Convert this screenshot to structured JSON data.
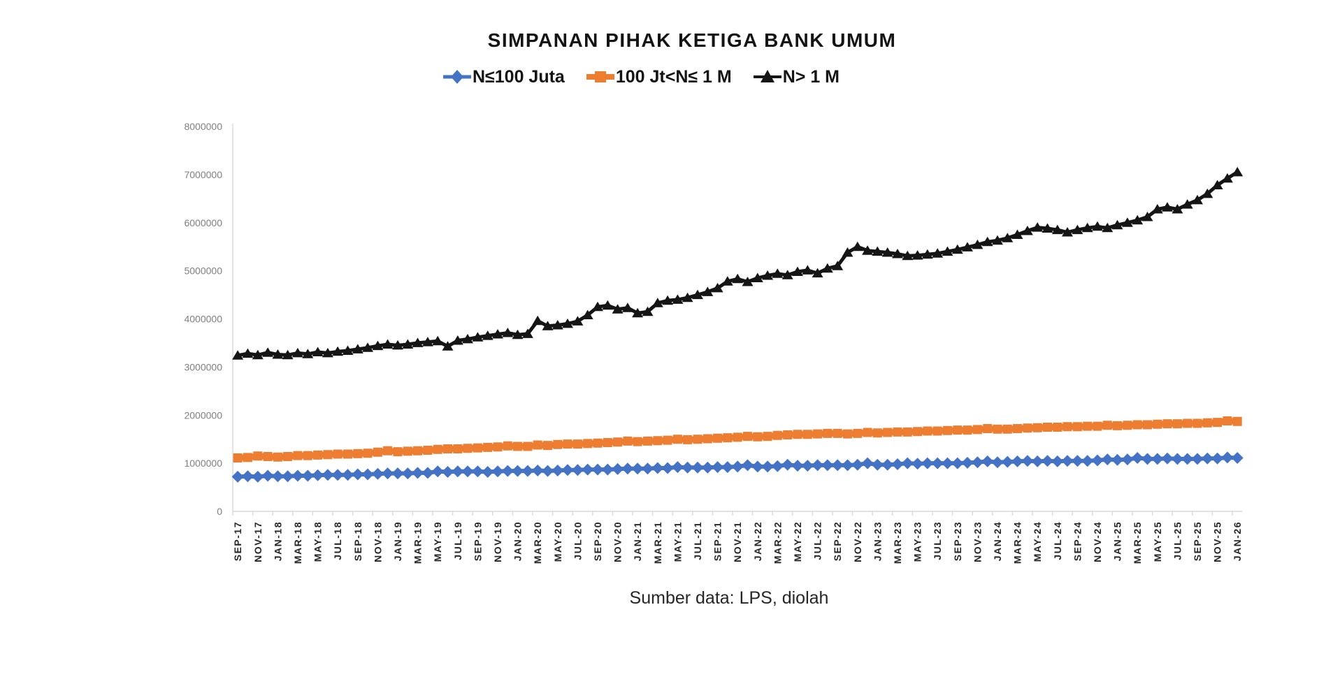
{
  "source_note": "Sumber data: LPS, diolah",
  "chart_data": {
    "type": "line",
    "title": "SIMPANAN PIHAK KETIGA BANK UMUM",
    "xlabel": "",
    "ylabel": "",
    "ylim": [
      0,
      8000000
    ],
    "y_ticks": [
      0,
      1000000,
      2000000,
      3000000,
      4000000,
      5000000,
      6000000,
      7000000,
      8000000
    ],
    "x_tick_step": 2,
    "grid": false,
    "legend_position": "top",
    "axis_color": "#d9d9d9",
    "y_label_color": "#7f7f7f",
    "x_label_color": "#262626",
    "categories": [
      "SEP-17",
      "OCT-17",
      "NOV-17",
      "DEC-17",
      "JAN-18",
      "FEB-18",
      "MAR-18",
      "APR-18",
      "MAY-18",
      "JUN-18",
      "JUL-18",
      "AUG-18",
      "SEP-18",
      "OCT-18",
      "NOV-18",
      "DEC-18",
      "JAN-19",
      "FEB-19",
      "MAR-19",
      "APR-19",
      "MAY-19",
      "JUN-19",
      "JUL-19",
      "AUG-19",
      "SEP-19",
      "OCT-19",
      "NOV-19",
      "DEC-19",
      "JAN-20",
      "FEB-20",
      "MAR-20",
      "APR-20",
      "MAY-20",
      "JUN-20",
      "JUL-20",
      "AUG-20",
      "SEP-20",
      "OCT-20",
      "NOV-20",
      "DEC-20",
      "JAN-21",
      "FEB-21",
      "MAR-21",
      "APR-21",
      "MAY-21",
      "JUN-21",
      "JUL-21",
      "AUG-21",
      "SEP-21",
      "OCT-21",
      "NOV-21",
      "DEC-21",
      "JAN-22",
      "FEB-22",
      "MAR-22",
      "APR-22",
      "MAY-22",
      "JUN-22",
      "JUL-22",
      "AUG-22",
      "SEP-22",
      "OCT-22",
      "NOV-22",
      "DEC-22",
      "JAN-23",
      "FEB-23",
      "MAR-23",
      "APR-23",
      "MAY-23",
      "JUN-23",
      "JUL-23",
      "AUG-23",
      "SEP-23",
      "OCT-23",
      "NOV-23",
      "DEC-23",
      "JAN-24",
      "FEB-24",
      "MAR-24",
      "APR-24",
      "MAY-24",
      "JUN-24",
      "JUL-24",
      "AUG-24",
      "SEP-24",
      "OCT-24",
      "NOV-24",
      "DEC-24",
      "JAN-25",
      "FEB-25",
      "MAR-25",
      "APR-25",
      "MAY-25",
      "JUN-25",
      "JUL-25",
      "AUG-25",
      "SEP-25",
      "OCT-25",
      "NOV-25",
      "DEC-25",
      "JAN-26"
    ],
    "series": [
      {
        "name": "N≤100 Juta",
        "marker": "diamond",
        "color": "#4472C4",
        "values": [
          720000,
          730000,
          720000,
          740000,
          730000,
          730000,
          740000,
          740000,
          750000,
          760000,
          760000,
          760000,
          770000,
          770000,
          780000,
          790000,
          790000,
          790000,
          800000,
          800000,
          830000,
          820000,
          830000,
          830000,
          830000,
          820000,
          830000,
          840000,
          840000,
          840000,
          850000,
          840000,
          850000,
          860000,
          860000,
          870000,
          870000,
          870000,
          880000,
          890000,
          890000,
          890000,
          900000,
          900000,
          920000,
          910000,
          910000,
          910000,
          920000,
          920000,
          930000,
          960000,
          930000,
          930000,
          940000,
          970000,
          950000,
          950000,
          960000,
          960000,
          960000,
          960000,
          970000,
          1000000,
          970000,
          970000,
          980000,
          1000000,
          990000,
          1000000,
          1000000,
          1000000,
          1000000,
          1010000,
          1020000,
          1040000,
          1020000,
          1030000,
          1040000,
          1050000,
          1040000,
          1050000,
          1040000,
          1050000,
          1050000,
          1050000,
          1060000,
          1080000,
          1070000,
          1080000,
          1110000,
          1090000,
          1090000,
          1100000,
          1090000,
          1090000,
          1090000,
          1100000,
          1100000,
          1120000,
          1110000
        ]
      },
      {
        "name": "100 Jt<N≤ 1 M",
        "marker": "square",
        "color": "#ED7D31",
        "values": [
          1110000,
          1120000,
          1150000,
          1140000,
          1130000,
          1140000,
          1160000,
          1160000,
          1170000,
          1180000,
          1190000,
          1190000,
          1200000,
          1210000,
          1230000,
          1260000,
          1240000,
          1250000,
          1260000,
          1270000,
          1290000,
          1300000,
          1300000,
          1310000,
          1320000,
          1330000,
          1340000,
          1360000,
          1350000,
          1350000,
          1380000,
          1370000,
          1390000,
          1400000,
          1400000,
          1410000,
          1420000,
          1430000,
          1440000,
          1460000,
          1450000,
          1460000,
          1470000,
          1480000,
          1500000,
          1490000,
          1500000,
          1510000,
          1520000,
          1530000,
          1540000,
          1560000,
          1550000,
          1560000,
          1580000,
          1590000,
          1600000,
          1600000,
          1610000,
          1620000,
          1620000,
          1610000,
          1620000,
          1640000,
          1630000,
          1640000,
          1650000,
          1650000,
          1660000,
          1670000,
          1670000,
          1680000,
          1690000,
          1690000,
          1700000,
          1720000,
          1710000,
          1710000,
          1720000,
          1730000,
          1740000,
          1750000,
          1750000,
          1760000,
          1760000,
          1770000,
          1770000,
          1790000,
          1780000,
          1790000,
          1800000,
          1800000,
          1810000,
          1820000,
          1820000,
          1830000,
          1830000,
          1840000,
          1850000,
          1880000,
          1870000
        ]
      },
      {
        "name": "N> 1 M",
        "marker": "triangle",
        "color": "#151515",
        "values": [
          3240000,
          3280000,
          3250000,
          3300000,
          3260000,
          3250000,
          3290000,
          3270000,
          3310000,
          3290000,
          3320000,
          3340000,
          3370000,
          3400000,
          3440000,
          3470000,
          3450000,
          3470000,
          3500000,
          3520000,
          3540000,
          3430000,
          3550000,
          3580000,
          3620000,
          3650000,
          3680000,
          3710000,
          3670000,
          3690000,
          3960000,
          3850000,
          3870000,
          3900000,
          3950000,
          4080000,
          4250000,
          4280000,
          4200000,
          4230000,
          4120000,
          4150000,
          4330000,
          4380000,
          4400000,
          4440000,
          4500000,
          4560000,
          4640000,
          4780000,
          4830000,
          4770000,
          4850000,
          4900000,
          4940000,
          4910000,
          4980000,
          5010000,
          4950000,
          5050000,
          5100000,
          5380000,
          5500000,
          5420000,
          5400000,
          5380000,
          5350000,
          5310000,
          5320000,
          5340000,
          5360000,
          5400000,
          5440000,
          5490000,
          5540000,
          5600000,
          5630000,
          5680000,
          5750000,
          5830000,
          5900000,
          5880000,
          5850000,
          5800000,
          5850000,
          5890000,
          5920000,
          5890000,
          5950000,
          6000000,
          6050000,
          6120000,
          6280000,
          6320000,
          6280000,
          6380000,
          6470000,
          6600000,
          6780000,
          6920000,
          7050000
        ]
      }
    ]
  }
}
